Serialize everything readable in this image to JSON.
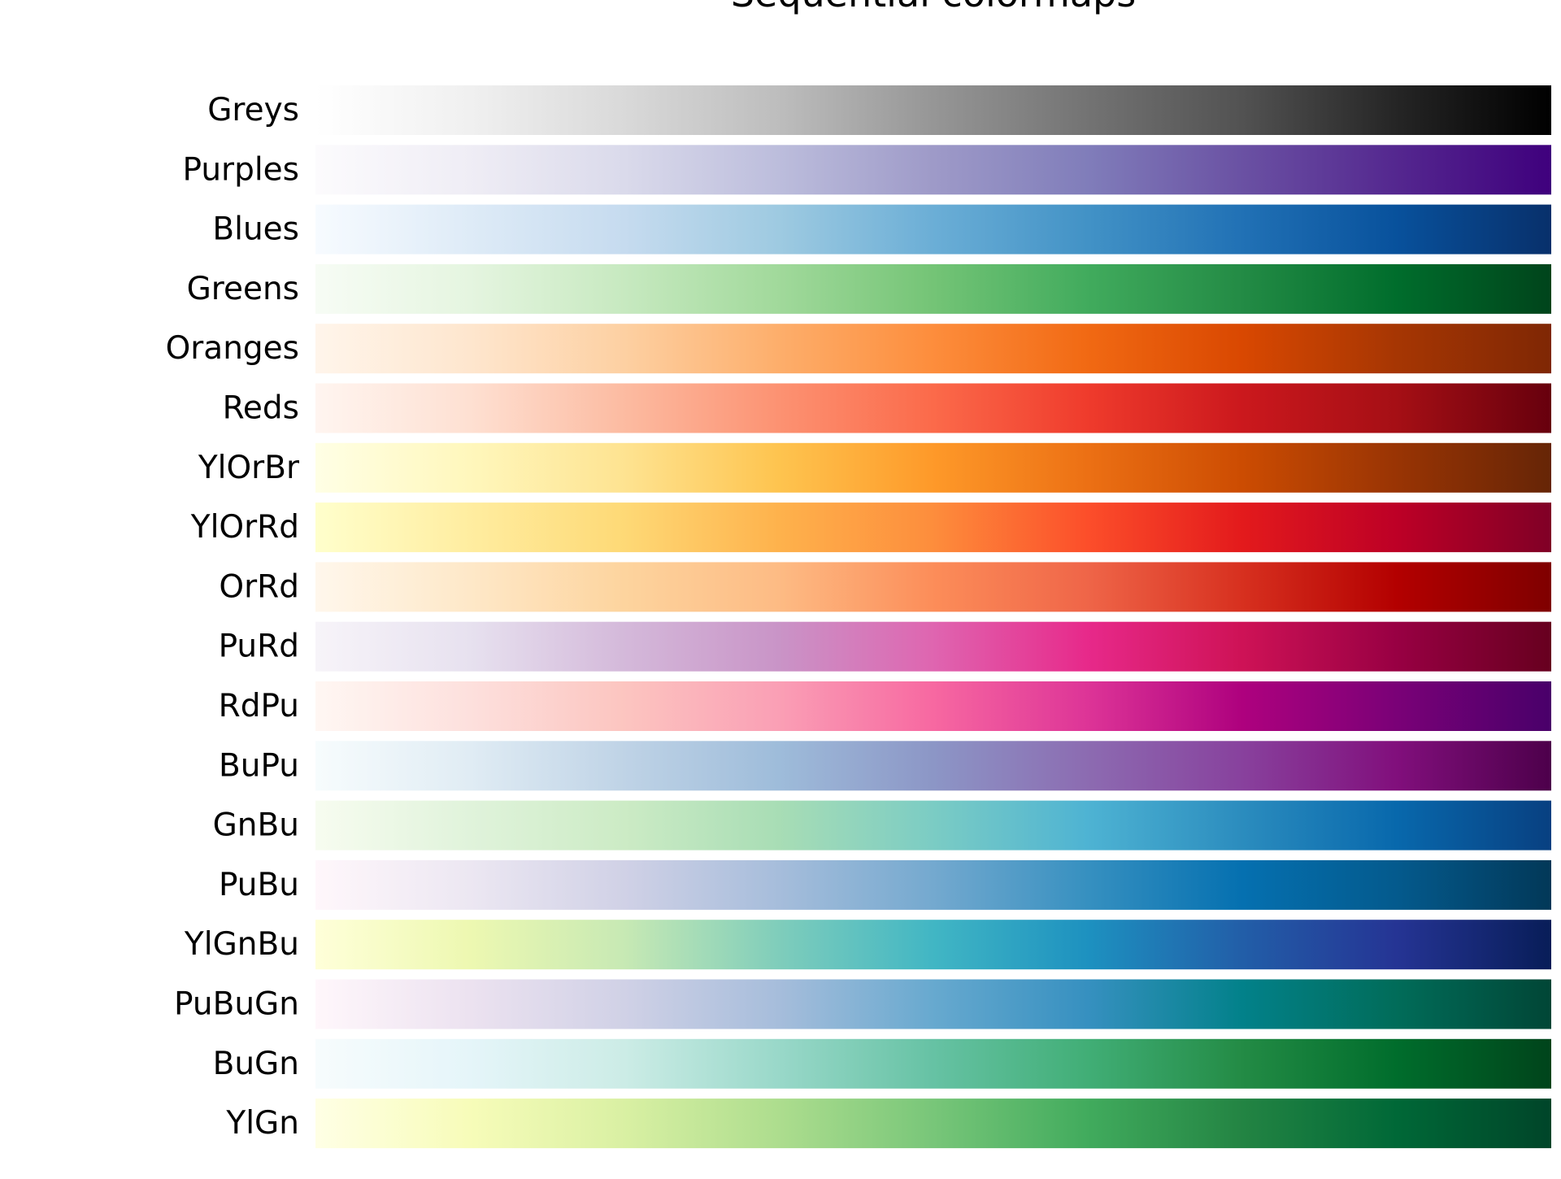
{
  "chart_data": {
    "type": "heatmap",
    "title": "Sequential colormaps",
    "x_range": [
      0,
      1
    ],
    "grid": false,
    "axes_visible": false,
    "series": [
      {
        "name": "Greys",
        "colors": [
          "#ffffff",
          "#f0f0f0",
          "#d9d9d9",
          "#bdbdbd",
          "#969696",
          "#737373",
          "#525252",
          "#252525",
          "#000000"
        ]
      },
      {
        "name": "Purples",
        "colors": [
          "#fcfbfd",
          "#efedf5",
          "#dadaeb",
          "#bcbddc",
          "#9e9ac8",
          "#807dba",
          "#6a51a3",
          "#54278f",
          "#3f007d"
        ]
      },
      {
        "name": "Blues",
        "colors": [
          "#f7fbff",
          "#deebf7",
          "#c6dbef",
          "#9ecae1",
          "#6baed6",
          "#4292c6",
          "#2171b5",
          "#08519c",
          "#08306b"
        ]
      },
      {
        "name": "Greens",
        "colors": [
          "#f7fcf5",
          "#e5f5e0",
          "#c7e9c0",
          "#a1d99b",
          "#74c476",
          "#41ab5d",
          "#238b45",
          "#006d2c",
          "#00441b"
        ]
      },
      {
        "name": "Oranges",
        "colors": [
          "#fff5eb",
          "#fee6ce",
          "#fdd0a2",
          "#fdae6b",
          "#fd8d3c",
          "#f16913",
          "#d94801",
          "#a63603",
          "#7f2704"
        ]
      },
      {
        "name": "Reds",
        "colors": [
          "#fff5f0",
          "#fee0d2",
          "#fcbba1",
          "#fc9272",
          "#fb6a4a",
          "#ef3b2c",
          "#cb181d",
          "#a50f15",
          "#67000d"
        ]
      },
      {
        "name": "YlOrBr",
        "colors": [
          "#ffffe5",
          "#fff7bc",
          "#fee391",
          "#fec44f",
          "#fe9929",
          "#ec7014",
          "#cc4c02",
          "#993404",
          "#662506"
        ]
      },
      {
        "name": "YlOrRd",
        "colors": [
          "#ffffcc",
          "#ffeda0",
          "#fed976",
          "#feb24c",
          "#fd8d3c",
          "#fc4e2a",
          "#e31a1c",
          "#bd0026",
          "#800026"
        ]
      },
      {
        "name": "OrRd",
        "colors": [
          "#fff7ec",
          "#fee8c8",
          "#fdd49e",
          "#fdbb84",
          "#fc8d59",
          "#ef6548",
          "#d7301f",
          "#b30000",
          "#7f0000"
        ]
      },
      {
        "name": "PuRd",
        "colors": [
          "#f7f4f9",
          "#e7e1ef",
          "#d4b9da",
          "#c994c7",
          "#df65b0",
          "#e7298a",
          "#ce1256",
          "#980043",
          "#67001f"
        ]
      },
      {
        "name": "RdPu",
        "colors": [
          "#fff7f3",
          "#fde0dd",
          "#fcc5c0",
          "#fa9fb5",
          "#f768a1",
          "#dd3497",
          "#ae017e",
          "#7a0177",
          "#49006a"
        ]
      },
      {
        "name": "BuPu",
        "colors": [
          "#f7fcfd",
          "#e0ecf4",
          "#bfd3e6",
          "#9ebcda",
          "#8c96c6",
          "#8c6bb1",
          "#88419d",
          "#810f7c",
          "#4d004b"
        ]
      },
      {
        "name": "GnBu",
        "colors": [
          "#f7fcf0",
          "#e0f3db",
          "#ccebc5",
          "#a8ddb5",
          "#7bccc4",
          "#4eb3d3",
          "#2b8cbe",
          "#0868ac",
          "#084081"
        ]
      },
      {
        "name": "PuBu",
        "colors": [
          "#fff7fb",
          "#ece7f2",
          "#d0d1e6",
          "#a6bddb",
          "#74a9cf",
          "#3690c0",
          "#0570b0",
          "#045a8d",
          "#023858"
        ]
      },
      {
        "name": "YlGnBu",
        "colors": [
          "#ffffd9",
          "#edf8b1",
          "#c7e9b4",
          "#7fcdbb",
          "#41b6c4",
          "#1d91c0",
          "#225ea8",
          "#253494",
          "#081d58"
        ]
      },
      {
        "name": "PuBuGn",
        "colors": [
          "#fff7fb",
          "#ece2f0",
          "#d0d1e6",
          "#a6bddb",
          "#67a9cf",
          "#3690c0",
          "#02818a",
          "#016c59",
          "#014636"
        ]
      },
      {
        "name": "BuGn",
        "colors": [
          "#f7fcfd",
          "#e5f5f9",
          "#ccece6",
          "#99d8c9",
          "#66c2a4",
          "#41ae76",
          "#238b45",
          "#006d2c",
          "#00441b"
        ]
      },
      {
        "name": "YlGn",
        "colors": [
          "#ffffe5",
          "#f7fcb9",
          "#d9f0a3",
          "#addd8e",
          "#78c679",
          "#41ab5d",
          "#238443",
          "#006837",
          "#004529"
        ]
      }
    ]
  }
}
